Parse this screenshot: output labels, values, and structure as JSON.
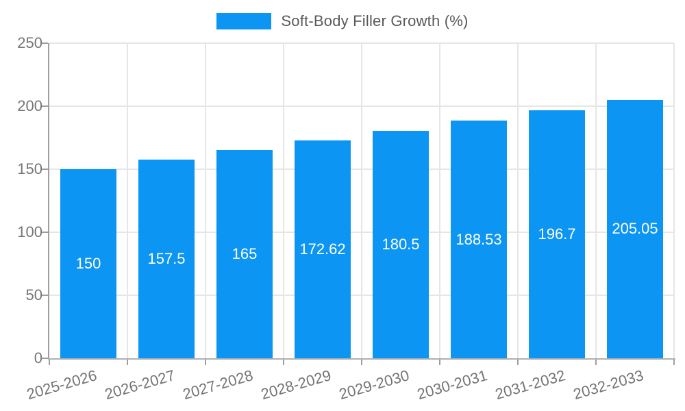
{
  "chart_data": {
    "type": "bar",
    "title": "",
    "legend_label": "Soft-Body Filler Growth (%)",
    "legend_position": "top",
    "categories": [
      "2025-2026",
      "2026-2027",
      "2027-2028",
      "2028-2029",
      "2029-2030",
      "2030-2031",
      "2031-2032",
      "2032-2033"
    ],
    "series": [
      {
        "name": "Soft-Body Filler Growth (%)",
        "values": [
          150,
          157.5,
          165,
          172.62,
          180.5,
          188.53,
          196.7,
          205.05
        ],
        "value_labels": [
          "150",
          "157.5",
          "165",
          "172.62",
          "180.5",
          "188.53",
          "196.7",
          "205.05"
        ]
      }
    ],
    "xlabel": "",
    "ylabel": "",
    "ylim": [
      0,
      250
    ],
    "yticks": [
      0,
      50,
      100,
      150,
      200,
      250
    ],
    "grid": true,
    "colors": {
      "bar": "#0c95f3",
      "grid": "#e6e6e6",
      "axis": "#9e9e9e",
      "tick_label": "#757575",
      "legend_text": "#58595b",
      "bar_label": "#ffffff"
    }
  }
}
